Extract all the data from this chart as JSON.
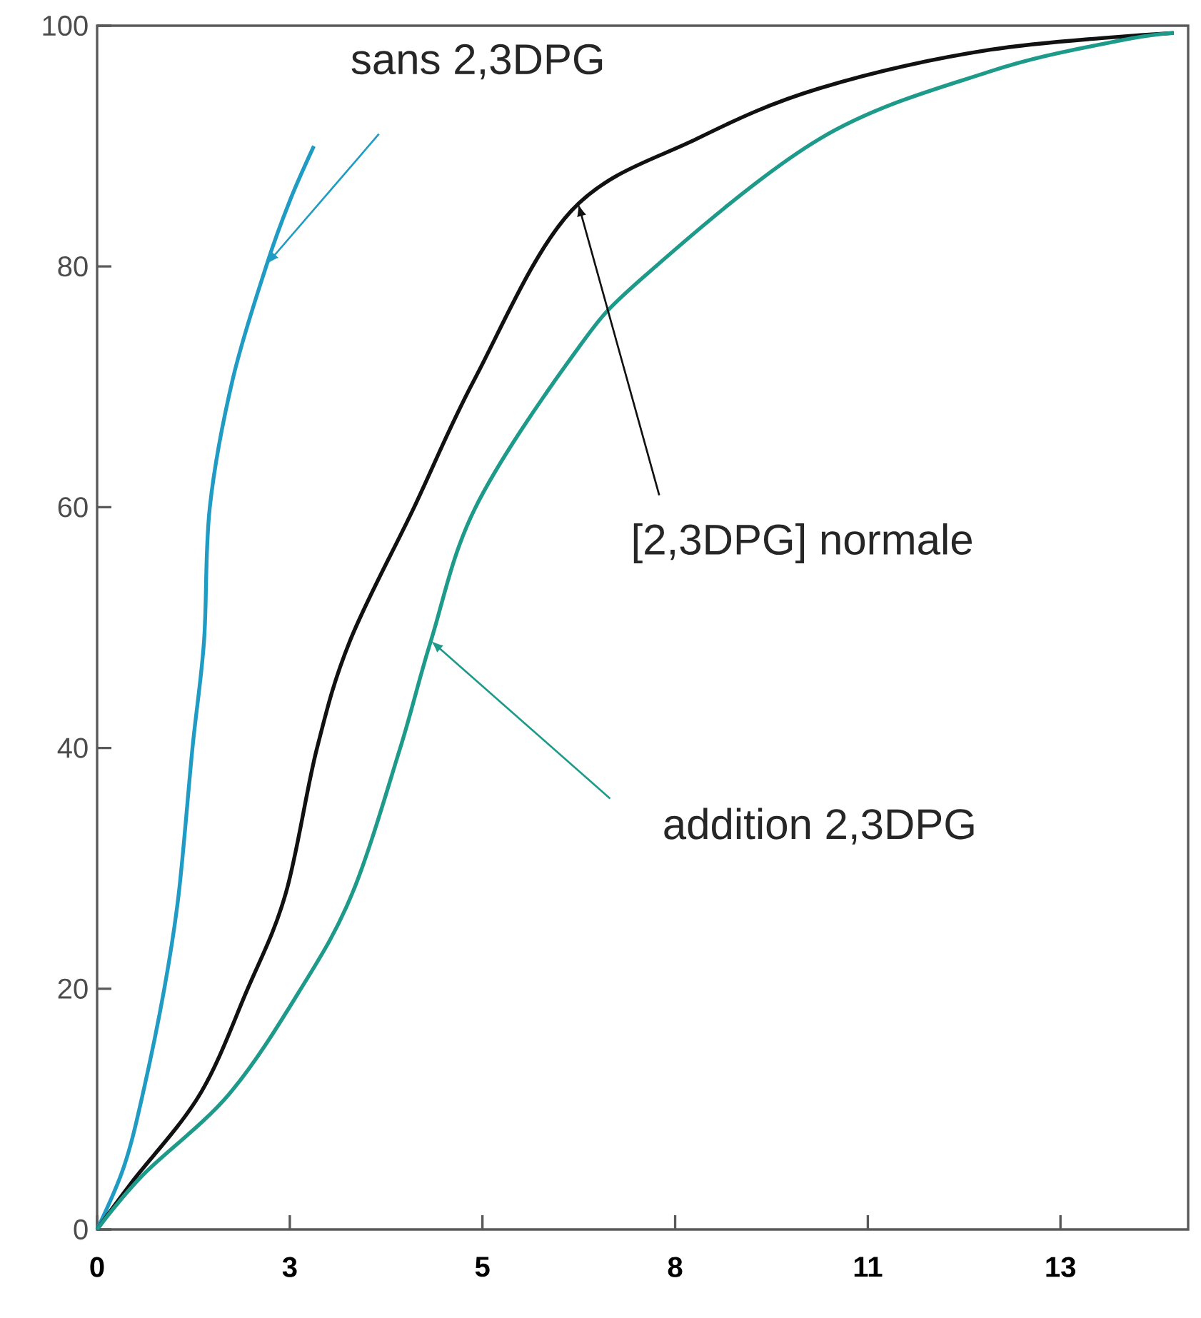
{
  "chart_data": {
    "type": "line",
    "xlim": [
      0,
      15.1
    ],
    "ylim": [
      0,
      100
    ],
    "xticks": [
      0,
      {
        "value": 2.667,
        "label": "3"
      },
      {
        "value": 5.333,
        "label": "5"
      },
      {
        "value": 8,
        "label": "8"
      },
      {
        "value": 10.667,
        "label": "11"
      },
      {
        "value": 13.333,
        "label": "13"
      }
    ],
    "yticks": [
      0,
      20,
      40,
      60,
      80,
      100
    ],
    "grid": false,
    "marker": "none",
    "line_style": "solid",
    "series": [
      {
        "color": "#1f9bc4",
        "x": [
          0,
          0.37,
          0.63,
          0.93,
          1.13,
          1.32,
          1.48,
          1.56,
          1.88,
          2.35,
          2.67,
          3.0
        ],
        "values": [
          0,
          5.2,
          11.2,
          20,
          27.9,
          40,
          48.9,
          60,
          70.7,
          80.2,
          85.5,
          90
        ]
      },
      {
        "color": "#111111",
        "x": [
          0,
          0.49,
          1.42,
          2.07,
          2.61,
          3.04,
          3.5,
          4.38,
          5.23,
          6.56,
          8.3,
          10.0,
          12.36,
          14.9
        ],
        "values": [
          0,
          4,
          11.2,
          19.8,
          27.9,
          39.9,
          48.9,
          59.9,
          70.7,
          84.6,
          90.6,
          94.8,
          98,
          99.4
        ]
      },
      {
        "color": "#1e9a8a",
        "x": [
          0,
          0.63,
          1.82,
          2.8,
          3.53,
          4.19,
          4.62,
          5.23,
          6.56,
          7.54,
          10.0,
          12.36,
          14.1,
          14.9
        ],
        "values": [
          0,
          4.5,
          11.2,
          19.8,
          27.9,
          39.9,
          48.9,
          59.9,
          72.4,
          79,
          90.6,
          96.2,
          98.7,
          99.4
        ]
      }
    ],
    "annotations": [
      {
        "text": "sans 2,3DPG",
        "x": 2.35,
        "y": 80.2
      },
      {
        "text": "[2,3DPG] normale",
        "x": 6.66,
        "y": 85.2
      },
      {
        "text": "addition 2,3DPG",
        "x": 4.62,
        "y": 48.9
      }
    ]
  }
}
